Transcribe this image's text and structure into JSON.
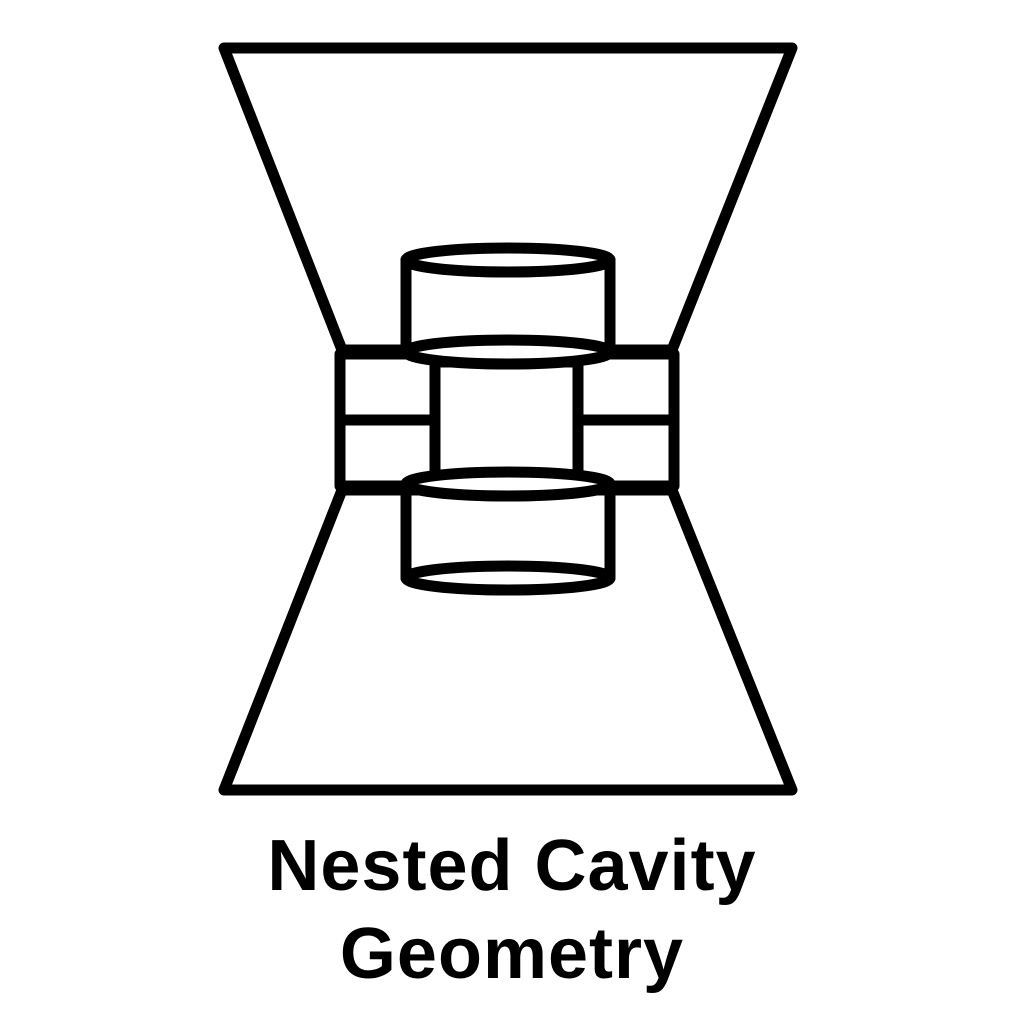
{
  "diagram": {
    "title_line_1": "Nested Cavity",
    "title_line_2": "Geometry",
    "stroke_color": "#000000",
    "background_color": "#ffffff"
  }
}
